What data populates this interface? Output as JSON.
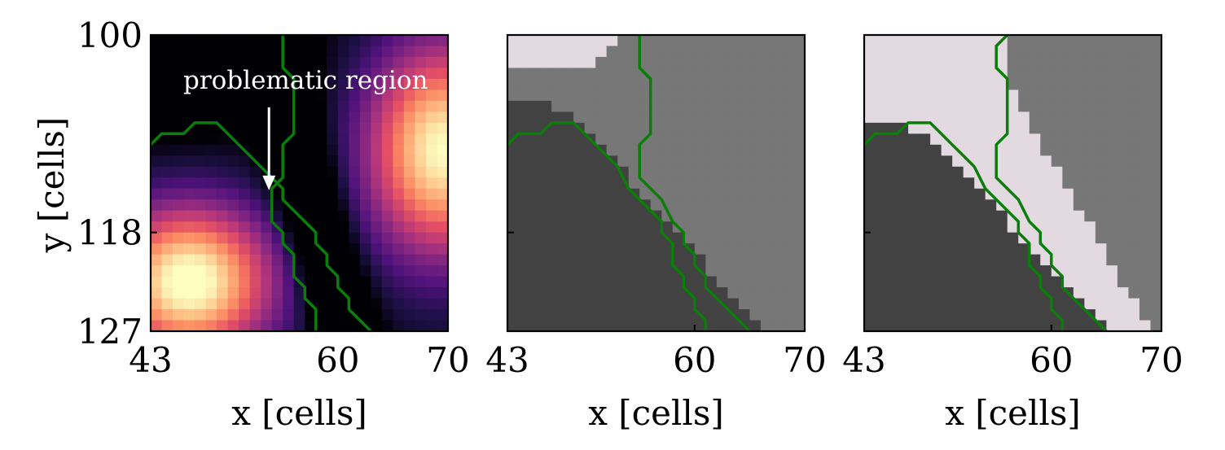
{
  "chart_data": [
    {
      "type": "heatmap",
      "panel": "left",
      "colormap": "magma",
      "xlabel": "x [cells]",
      "ylabel": "y [cells]",
      "xlim": [
        43,
        70
      ],
      "ylim": [
        127,
        100
      ],
      "xticks": [
        43,
        60,
        70
      ],
      "yticks": [
        100,
        118,
        127
      ],
      "annotation": {
        "text": "problematic region",
        "arrow_from": [
          55,
          106
        ],
        "arrow_to": [
          55,
          114
        ]
      },
      "contours": [
        {
          "color": "#0a7d0a",
          "points": [
            [
              43,
              110
            ],
            [
              44,
              109
            ],
            [
              46,
              109
            ],
            [
              47,
              108
            ],
            [
              49,
              108
            ],
            [
              50,
              109
            ],
            [
              51,
              110
            ],
            [
              52,
              111
            ],
            [
              53,
              112
            ],
            [
              54,
              113
            ],
            [
              55,
              114
            ],
            [
              55,
              115
            ],
            [
              56,
              116
            ],
            [
              57,
              117
            ],
            [
              58,
              118
            ],
            [
              58,
              119
            ],
            [
              59,
              120
            ],
            [
              59,
              121
            ],
            [
              60,
              122
            ],
            [
              60,
              123
            ],
            [
              61,
              124
            ],
            [
              61,
              125
            ],
            [
              62,
              126
            ],
            [
              63,
              127
            ]
          ]
        },
        {
          "color": "#0a7d0a",
          "points": [
            [
              55,
              100
            ],
            [
              55,
              101
            ],
            [
              55,
              102
            ],
            [
              55,
              103
            ],
            [
              56,
              104
            ],
            [
              56,
              105
            ],
            [
              56,
              106
            ],
            [
              56,
              107
            ],
            [
              56,
              108
            ],
            [
              56,
              109
            ],
            [
              55,
              110
            ],
            [
              55,
              111
            ],
            [
              55,
              112
            ],
            [
              55,
              113
            ],
            [
              54,
              114
            ],
            [
              54,
              115
            ],
            [
              54,
              116
            ],
            [
              54,
              117
            ],
            [
              55,
              118
            ],
            [
              55,
              119
            ],
            [
              56,
              120
            ],
            [
              56,
              121
            ],
            [
              56,
              122
            ],
            [
              57,
              123
            ],
            [
              57,
              124
            ],
            [
              58,
              125
            ],
            [
              58,
              126
            ],
            [
              58,
              127
            ]
          ]
        }
      ]
    },
    {
      "type": "heatmap",
      "panel": "middle",
      "colors": [
        "#424242",
        "#777777",
        "#e2d9e1"
      ],
      "xlabel": "x [cells]",
      "xlim": [
        43,
        70
      ],
      "ylim": [
        127,
        100
      ],
      "xticks": [
        43,
        60,
        70
      ],
      "yticks": [
        118
      ],
      "region_boundaries": {
        "dark_right_edge": [
          [
            43,
            106
          ],
          [
            47,
            105
          ],
          [
            49,
            104
          ],
          [
            50,
            103
          ],
          [
            52,
            109
          ],
          [
            53,
            111
          ],
          [
            54,
            114
          ],
          [
            55,
            117
          ],
          [
            56,
            120
          ],
          [
            57,
            122
          ],
          [
            58,
            125
          ],
          [
            59,
            127
          ]
        ],
        "light_right_edge": [
          [
            52,
            100
          ],
          [
            50,
            103
          ],
          [
            48,
            104
          ]
        ]
      },
      "contours": [
        {
          "color": "#0a7d0a",
          "points": [
            [
              43,
              110
            ],
            [
              44,
              109
            ],
            [
              46,
              109
            ],
            [
              47,
              108
            ],
            [
              49,
              108
            ],
            [
              50,
              109
            ],
            [
              51,
              110
            ],
            [
              52,
              111
            ],
            [
              53,
              112
            ],
            [
              54,
              114
            ],
            [
              55,
              115
            ],
            [
              56,
              116
            ],
            [
              57,
              117
            ],
            [
              57,
              118
            ],
            [
              58,
              119
            ],
            [
              58,
              120
            ],
            [
              58,
              121
            ],
            [
              59,
              122
            ],
            [
              59,
              123
            ],
            [
              60,
              124
            ],
            [
              60,
              125
            ],
            [
              61,
              126
            ],
            [
              61,
              127
            ]
          ]
        },
        {
          "color": "#0a7d0a",
          "points": [
            [
              55,
              100
            ],
            [
              55,
              101
            ],
            [
              55,
              102
            ],
            [
              55,
              103
            ],
            [
              56,
              104
            ],
            [
              56,
              105
            ],
            [
              56,
              106
            ],
            [
              56,
              107
            ],
            [
              56,
              108
            ],
            [
              56,
              109
            ],
            [
              55,
              110
            ],
            [
              55,
              111
            ],
            [
              55,
              112
            ],
            [
              55,
              113
            ],
            [
              56,
              114
            ],
            [
              57,
              115
            ],
            [
              58,
              117
            ],
            [
              59,
              118
            ],
            [
              59,
              119
            ],
            [
              60,
              120
            ],
            [
              60,
              121
            ],
            [
              61,
              122
            ],
            [
              61,
              123
            ],
            [
              62,
              124
            ],
            [
              63,
              125
            ],
            [
              64,
              126
            ],
            [
              65,
              127
            ]
          ]
        }
      ]
    },
    {
      "type": "heatmap",
      "panel": "right",
      "colors": [
        "#424242",
        "#777777",
        "#e2d9e1"
      ],
      "xlabel": "x [cells]",
      "xlim": [
        43,
        70
      ],
      "ylim": [
        127,
        100
      ],
      "xticks": [
        43,
        60,
        70
      ],
      "yticks": [
        118
      ],
      "contours": [
        {
          "color": "#0a7d0a",
          "points": [
            [
              43,
              110
            ],
            [
              44,
              109
            ],
            [
              46,
              109
            ],
            [
              47,
              108
            ],
            [
              49,
              108
            ],
            [
              50,
              109
            ],
            [
              51,
              110
            ],
            [
              52,
              111
            ],
            [
              53,
              112
            ],
            [
              54,
              114
            ],
            [
              55,
              115
            ],
            [
              56,
              116
            ],
            [
              57,
              117
            ],
            [
              57,
              118
            ],
            [
              58,
              119
            ],
            [
              58,
              120
            ],
            [
              58,
              121
            ],
            [
              59,
              122
            ],
            [
              59,
              123
            ],
            [
              60,
              124
            ],
            [
              60,
              125
            ],
            [
              61,
              126
            ],
            [
              61,
              127
            ]
          ]
        },
        {
          "color": "#0a7d0a",
          "points": [
            [
              56,
              100
            ],
            [
              55,
              101
            ],
            [
              55,
              102
            ],
            [
              55,
              103
            ],
            [
              56,
              104
            ],
            [
              56,
              105
            ],
            [
              56,
              106
            ],
            [
              56,
              107
            ],
            [
              56,
              108
            ],
            [
              56,
              109
            ],
            [
              55,
              110
            ],
            [
              55,
              111
            ],
            [
              55,
              112
            ],
            [
              55,
              113
            ],
            [
              56,
              114
            ],
            [
              57,
              115
            ],
            [
              58,
              117
            ],
            [
              59,
              118
            ],
            [
              59,
              119
            ],
            [
              60,
              120
            ],
            [
              60,
              121
            ],
            [
              61,
              122
            ],
            [
              61,
              123
            ],
            [
              62,
              124
            ],
            [
              63,
              125
            ],
            [
              64,
              126
            ],
            [
              65,
              127
            ]
          ]
        }
      ]
    }
  ]
}
